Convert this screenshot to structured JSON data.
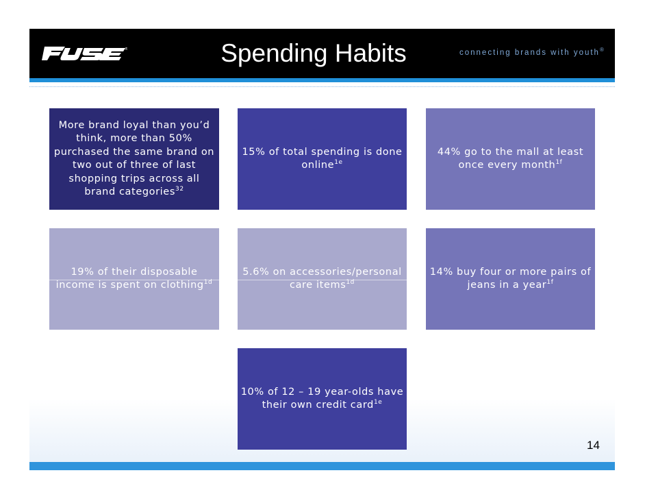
{
  "header": {
    "title": "Spending Habits",
    "tagline": "connecting brands with youth",
    "tagline_mark": "®",
    "logo_text": "FUSE"
  },
  "colors": {
    "header_bg": "#000000",
    "accent_blue": "#1f8fd8",
    "box_dark_navy": "#2b2a73",
    "box_blue": "#3f3f9d",
    "box_lavender": "#7575b8",
    "box_pale": "#a9a9cd"
  },
  "boxes": [
    {
      "text": "More brand loyal than you’d think, more than 50% purchased the same brand on two out of three of last shopping trips across all brand categories",
      "ref": "32",
      "color": "#2b2a73"
    },
    {
      "text": "15% of total spending is done online",
      "ref": "1e",
      "color": "#3f3f9d"
    },
    {
      "text": "44% go to the mall at least once every month",
      "ref": "1f",
      "color": "#7575b8"
    },
    {
      "text": "19% of their disposable income is spent on clothing",
      "ref": "1d",
      "color": "#a9a9cd"
    },
    {
      "text": "5.6% on accessories/personal care items",
      "ref": "1d",
      "color": "#a9a9cd"
    },
    {
      "text": "14% buy four or more pairs of jeans in a year",
      "ref": "1f",
      "color": "#7575b8"
    },
    {
      "text": "10% of 12 – 19 year-olds have their own credit card",
      "ref": "1e",
      "color": "#3f3f9d"
    }
  ],
  "page_number": "14"
}
